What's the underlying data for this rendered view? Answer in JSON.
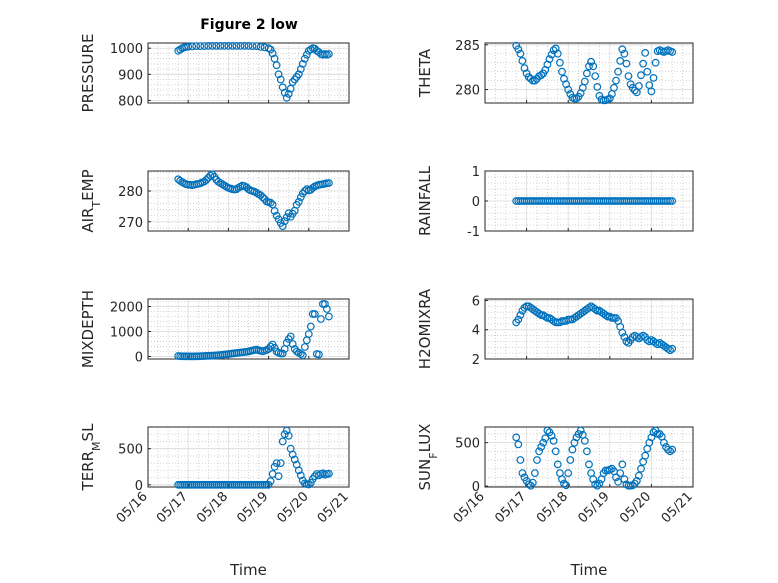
{
  "figure_title": "Figure 2 low",
  "colors": {
    "marker": "#0072BD",
    "axis": "#262626",
    "grid": "#c8c8c8"
  },
  "x_tick_labels": [
    "05/16",
    "05/17",
    "05/18",
    "05/19",
    "05/20",
    "05/21"
  ],
  "x_label": "Time",
  "chart_data": [
    {
      "type": "scatter",
      "id": "pressure",
      "title": "Figure 2 low",
      "ylabel": "PRESSURE",
      "ylim": [
        790,
        1020
      ],
      "yticks": [
        800,
        900,
        1000
      ],
      "xlim": [
        0,
        5
      ],
      "x": [
        0.75,
        0.8,
        0.85,
        0.9,
        0.95,
        1.0,
        1.1,
        1.2,
        1.3,
        1.4,
        1.5,
        1.6,
        1.7,
        1.8,
        1.9,
        2.0,
        2.1,
        2.2,
        2.3,
        2.4,
        2.5,
        2.6,
        2.7,
        2.8,
        2.9,
        3.0,
        3.05,
        3.1,
        3.15,
        3.2,
        3.25,
        3.3,
        3.35,
        3.4,
        3.45,
        3.5,
        3.55,
        3.6,
        3.65,
        3.7,
        3.75,
        3.8,
        3.85,
        3.9,
        3.95,
        4.0,
        4.05,
        4.1,
        4.15,
        4.2,
        4.25,
        4.3,
        4.35,
        4.4,
        4.45,
        4.5
      ],
      "y": [
        990,
        995,
        1000,
        1003,
        1005,
        1006,
        1007,
        1008,
        1008,
        1008,
        1009,
        1009,
        1009,
        1009,
        1009,
        1009,
        1009,
        1009,
        1009,
        1009,
        1009,
        1008,
        1008,
        1005,
        1003,
        1000,
        995,
        980,
        960,
        935,
        900,
        880,
        850,
        830,
        810,
        825,
        845,
        870,
        880,
        890,
        900,
        920,
        940,
        960,
        975,
        990,
        995,
        1000,
        998,
        990,
        985,
        978,
        975,
        978,
        975,
        978
      ]
    },
    {
      "type": "scatter",
      "id": "theta",
      "title": "",
      "ylabel": "THETA",
      "ylim": [
        278.5,
        285.2
      ],
      "yticks": [
        280,
        285
      ],
      "xlim": [
        0,
        5
      ],
      "x": [
        0.75,
        0.8,
        0.85,
        0.9,
        0.95,
        1.0,
        1.05,
        1.1,
        1.15,
        1.2,
        1.25,
        1.3,
        1.35,
        1.4,
        1.45,
        1.5,
        1.55,
        1.6,
        1.65,
        1.7,
        1.75,
        1.8,
        1.85,
        1.9,
        1.95,
        2.0,
        2.05,
        2.1,
        2.15,
        2.2,
        2.25,
        2.3,
        2.35,
        2.4,
        2.45,
        2.5,
        2.55,
        2.6,
        2.65,
        2.7,
        2.75,
        2.8,
        2.85,
        2.9,
        2.95,
        3.0,
        3.05,
        3.1,
        3.15,
        3.2,
        3.25,
        3.3,
        3.35,
        3.4,
        3.45,
        3.5,
        3.55,
        3.6,
        3.65,
        3.7,
        3.75,
        3.8,
        3.85,
        3.9,
        3.95,
        4.0,
        4.05,
        4.1,
        4.15,
        4.2,
        4.25,
        4.3,
        4.35,
        4.4,
        4.45,
        4.5
      ],
      "y": [
        284.9,
        284.5,
        284,
        283.2,
        282.4,
        281.8,
        281.4,
        281.2,
        281.0,
        281.0,
        281.2,
        281.5,
        281.6,
        281.8,
        282.2,
        282.8,
        283.4,
        283.9,
        284.4,
        284.6,
        284.0,
        283.0,
        282.0,
        281.2,
        280.6,
        280.0,
        279.5,
        279.1,
        279.0,
        279.0,
        279.2,
        279.6,
        280.2,
        280.9,
        281.8,
        282.6,
        283.1,
        282.6,
        281.5,
        280.3,
        279.3,
        278.9,
        278.8,
        278.8,
        278.9,
        279.0,
        279.5,
        280.2,
        281.0,
        282.0,
        283.2,
        284.5,
        284.0,
        282.9,
        281.5,
        280.6,
        280.2,
        279.9,
        279.7,
        280.4,
        281.6,
        282.9,
        284.1,
        282.0,
        280.5,
        279.8,
        281.3,
        283.0,
        284.3,
        284.4,
        284.3,
        284.2,
        284.3,
        284.4,
        284.3,
        284.2
      ]
    },
    {
      "type": "scatter",
      "id": "air_temp",
      "title": "",
      "ylabel": "AIR_TEMP",
      "ylim": [
        267,
        286.5
      ],
      "yticks": [
        270,
        280
      ],
      "xlim": [
        0,
        5
      ],
      "x": [
        0.75,
        0.8,
        0.85,
        0.9,
        0.95,
        1.0,
        1.05,
        1.1,
        1.15,
        1.2,
        1.25,
        1.3,
        1.35,
        1.4,
        1.45,
        1.5,
        1.55,
        1.6,
        1.65,
        1.7,
        1.75,
        1.8,
        1.85,
        1.9,
        1.95,
        2.0,
        2.05,
        2.1,
        2.15,
        2.2,
        2.25,
        2.3,
        2.35,
        2.4,
        2.45,
        2.5,
        2.55,
        2.6,
        2.65,
        2.7,
        2.75,
        2.8,
        2.85,
        2.9,
        2.95,
        3.0,
        3.05,
        3.1,
        3.15,
        3.2,
        3.25,
        3.3,
        3.35,
        3.4,
        3.45,
        3.5,
        3.55,
        3.6,
        3.65,
        3.7,
        3.75,
        3.8,
        3.85,
        3.9,
        3.95,
        4.0,
        4.05,
        4.1,
        4.15,
        4.2,
        4.25,
        4.3,
        4.35,
        4.4,
        4.45,
        4.5
      ],
      "y": [
        283.8,
        283.3,
        282.9,
        282.5,
        282.2,
        282.0,
        282.0,
        281.9,
        282.0,
        282.2,
        282.3,
        282.5,
        282.8,
        283.1,
        283.6,
        284.3,
        285.0,
        285.4,
        284.6,
        283.7,
        283.0,
        282.6,
        282.2,
        281.8,
        281.4,
        281.0,
        280.8,
        280.6,
        280.5,
        280.6,
        281.0,
        281.4,
        281.8,
        281.6,
        281.2,
        280.6,
        280.2,
        280.0,
        279.8,
        279.4,
        279.0,
        278.6,
        278.0,
        277.4,
        276.6,
        276.4,
        276.2,
        275.6,
        273.5,
        272.0,
        270.8,
        269.6,
        268.6,
        270.2,
        271.5,
        272.8,
        271.6,
        272.6,
        273.6,
        275.5,
        276.5,
        278.0,
        279.2,
        280.0,
        280.6,
        280.2,
        280.4,
        281.0,
        281.5,
        281.8,
        282.0,
        282.1,
        282.2,
        282.4,
        282.5,
        282.6
      ]
    },
    {
      "type": "scatter",
      "id": "rainfall",
      "title": "",
      "ylabel": "RAINFALL",
      "ylim": [
        -1,
        1
      ],
      "yticks": [
        -1,
        0,
        1
      ],
      "xlim": [
        0,
        5
      ],
      "x": [
        0.75,
        0.8,
        0.85,
        0.9,
        0.95,
        1.0,
        1.05,
        1.1,
        1.15,
        1.2,
        1.25,
        1.3,
        1.35,
        1.4,
        1.45,
        1.5,
        1.55,
        1.6,
        1.65,
        1.7,
        1.75,
        1.8,
        1.85,
        1.9,
        1.95,
        2.0,
        2.05,
        2.1,
        2.15,
        2.2,
        2.25,
        2.3,
        2.35,
        2.4,
        2.45,
        2.5,
        2.55,
        2.6,
        2.65,
        2.7,
        2.75,
        2.8,
        2.85,
        2.9,
        2.95,
        3.0,
        3.05,
        3.1,
        3.15,
        3.2,
        3.25,
        3.3,
        3.35,
        3.4,
        3.45,
        3.5,
        3.55,
        3.6,
        3.65,
        3.7,
        3.75,
        3.8,
        3.85,
        3.9,
        3.95,
        4.0,
        4.05,
        4.1,
        4.15,
        4.2,
        4.25,
        4.3,
        4.35,
        4.4,
        4.45,
        4.5
      ],
      "y": [
        0,
        0,
        0,
        0,
        0,
        0,
        0,
        0,
        0,
        0,
        0,
        0,
        0,
        0,
        0,
        0,
        0,
        0,
        0,
        0,
        0,
        0,
        0,
        0,
        0,
        0,
        0,
        0,
        0,
        0,
        0,
        0,
        0,
        0,
        0,
        0,
        0,
        0,
        0,
        0,
        0,
        0,
        0,
        0,
        0,
        0,
        0,
        0,
        0,
        0,
        0,
        0,
        0,
        0,
        0,
        0,
        0,
        0,
        0,
        0,
        0,
        0,
        0,
        0,
        0,
        0,
        0,
        0,
        0,
        0,
        0,
        0,
        0,
        0,
        0,
        0
      ]
    },
    {
      "type": "scatter",
      "id": "mixdepth",
      "title": "",
      "ylabel": "MIXDEPTH",
      "ylim": [
        -100,
        2300
      ],
      "yticks": [
        0,
        1000,
        2000
      ],
      "xlim": [
        0,
        5
      ],
      "x": [
        0.75,
        0.8,
        0.85,
        0.9,
        0.95,
        1.0,
        1.05,
        1.1,
        1.15,
        1.2,
        1.25,
        1.3,
        1.35,
        1.4,
        1.45,
        1.5,
        1.55,
        1.6,
        1.65,
        1.7,
        1.75,
        1.8,
        1.85,
        1.9,
        1.95,
        2.0,
        2.05,
        2.1,
        2.15,
        2.2,
        2.25,
        2.3,
        2.35,
        2.4,
        2.45,
        2.5,
        2.55,
        2.6,
        2.65,
        2.7,
        2.75,
        2.8,
        2.85,
        2.9,
        2.95,
        3.0,
        3.05,
        3.1,
        3.15,
        3.2,
        3.25,
        3.3,
        3.35,
        3.4,
        3.45,
        3.5,
        3.55,
        3.6,
        3.65,
        3.7,
        3.75,
        3.8,
        3.85,
        3.9,
        3.95,
        4.0,
        4.05,
        4.1,
        4.15,
        4.2,
        4.25,
        4.3,
        4.35,
        4.4,
        4.45,
        4.5
      ],
      "y": [
        20,
        15,
        10,
        10,
        10,
        5,
        5,
        5,
        5,
        10,
        10,
        15,
        15,
        20,
        25,
        30,
        30,
        35,
        40,
        45,
        50,
        60,
        70,
        80,
        90,
        100,
        110,
        120,
        130,
        140,
        150,
        160,
        170,
        180,
        190,
        200,
        220,
        240,
        260,
        280,
        250,
        230,
        210,
        230,
        260,
        300,
        400,
        480,
        350,
        200,
        150,
        120,
        120,
        300,
        550,
        700,
        800,
        500,
        300,
        200,
        150,
        100,
        50,
        380,
        650,
        900,
        1200,
        1700,
        1700,
        100,
        80,
        1500,
        2100,
        2100,
        1900,
        1600
      ]
    },
    {
      "type": "scatter",
      "id": "h2omixra",
      "title": "",
      "ylabel": "H2OMIXRA",
      "ylim": [
        2,
        6.1
      ],
      "yticks": [
        2,
        4,
        6
      ],
      "xlim": [
        0,
        5
      ],
      "x": [
        0.75,
        0.8,
        0.85,
        0.9,
        0.95,
        1.0,
        1.05,
        1.1,
        1.15,
        1.2,
        1.25,
        1.3,
        1.35,
        1.4,
        1.45,
        1.5,
        1.55,
        1.6,
        1.65,
        1.7,
        1.75,
        1.8,
        1.85,
        1.9,
        1.95,
        2.0,
        2.05,
        2.1,
        2.15,
        2.2,
        2.25,
        2.3,
        2.35,
        2.4,
        2.45,
        2.5,
        2.55,
        2.6,
        2.65,
        2.7,
        2.75,
        2.8,
        2.85,
        2.9,
        2.95,
        3.0,
        3.05,
        3.1,
        3.15,
        3.2,
        3.25,
        3.3,
        3.35,
        3.4,
        3.45,
        3.5,
        3.55,
        3.6,
        3.65,
        3.7,
        3.75,
        3.8,
        3.85,
        3.9,
        3.95,
        4.0,
        4.05,
        4.1,
        4.15,
        4.2,
        4.25,
        4.3,
        4.35,
        4.4,
        4.45,
        4.5
      ],
      "y": [
        4.5,
        4.7,
        5.0,
        5.3,
        5.5,
        5.6,
        5.6,
        5.5,
        5.4,
        5.3,
        5.2,
        5.1,
        5.0,
        5.0,
        4.9,
        4.8,
        4.8,
        4.7,
        4.6,
        4.5,
        4.5,
        4.5,
        4.6,
        4.6,
        4.6,
        4.7,
        4.7,
        4.7,
        4.8,
        4.9,
        5.0,
        5.1,
        5.2,
        5.3,
        5.4,
        5.5,
        5.6,
        5.5,
        5.4,
        5.3,
        5.3,
        5.2,
        5.1,
        5.0,
        4.9,
        4.9,
        4.8,
        4.8,
        4.8,
        4.6,
        4.2,
        3.8,
        3.5,
        3.2,
        3.1,
        3.3,
        3.5,
        3.6,
        3.5,
        3.4,
        3.5,
        3.6,
        3.5,
        3.3,
        3.2,
        3.3,
        3.2,
        3.1,
        3.0,
        3.1,
        3.0,
        2.9,
        2.8,
        2.7,
        2.6,
        2.7
      ]
    },
    {
      "type": "scatter",
      "id": "terr_msl",
      "title": "",
      "ylabel": "TERR_MSL",
      "ylim": [
        -30,
        800
      ],
      "yticks": [
        0,
        500
      ],
      "xlim": [
        0,
        5
      ],
      "x": [
        0.75,
        0.8,
        0.85,
        0.9,
        0.95,
        1.0,
        1.05,
        1.1,
        1.15,
        1.2,
        1.25,
        1.3,
        1.35,
        1.4,
        1.45,
        1.5,
        1.55,
        1.6,
        1.65,
        1.7,
        1.75,
        1.8,
        1.85,
        1.9,
        1.95,
        2.0,
        2.05,
        2.1,
        2.15,
        2.2,
        2.25,
        2.3,
        2.35,
        2.4,
        2.45,
        2.5,
        2.55,
        2.6,
        2.65,
        2.7,
        2.75,
        2.8,
        2.85,
        2.9,
        2.95,
        3.0,
        3.05,
        3.1,
        3.15,
        3.2,
        3.25,
        3.3,
        3.35,
        3.4,
        3.45,
        3.5,
        3.55,
        3.6,
        3.65,
        3.7,
        3.75,
        3.8,
        3.85,
        3.9,
        3.95,
        4.0,
        4.05,
        4.1,
        4.15,
        4.2,
        4.25,
        4.3,
        4.35,
        4.4,
        4.45,
        4.5
      ],
      "y": [
        0,
        0,
        0,
        0,
        0,
        0,
        0,
        0,
        0,
        0,
        0,
        0,
        0,
        0,
        0,
        0,
        0,
        0,
        0,
        0,
        0,
        0,
        0,
        0,
        0,
        0,
        0,
        0,
        0,
        0,
        0,
        0,
        0,
        0,
        0,
        0,
        0,
        0,
        0,
        0,
        0,
        0,
        0,
        0,
        0,
        0,
        50,
        150,
        250,
        300,
        120,
        300,
        600,
        700,
        750,
        680,
        500,
        420,
        350,
        280,
        200,
        130,
        60,
        20,
        10,
        5,
        30,
        80,
        120,
        150,
        130,
        150,
        160,
        140,
        150,
        155
      ]
    },
    {
      "type": "scatter",
      "id": "sun_flux",
      "title": "",
      "ylabel": "SUN_FLUX",
      "ylim": [
        -10,
        680
      ],
      "yticks": [
        0,
        500
      ],
      "xlim": [
        0,
        5
      ],
      "x": [
        0.75,
        0.8,
        0.85,
        0.9,
        0.95,
        1.0,
        1.05,
        1.1,
        1.15,
        1.2,
        1.25,
        1.3,
        1.35,
        1.4,
        1.45,
        1.5,
        1.55,
        1.6,
        1.65,
        1.7,
        1.75,
        1.8,
        1.85,
        1.9,
        1.95,
        2.0,
        2.05,
        2.1,
        2.15,
        2.2,
        2.25,
        2.3,
        2.35,
        2.4,
        2.45,
        2.5,
        2.55,
        2.6,
        2.65,
        2.7,
        2.75,
        2.8,
        2.85,
        2.9,
        2.95,
        3.0,
        3.05,
        3.1,
        3.15,
        3.2,
        3.25,
        3.3,
        3.35,
        3.4,
        3.45,
        3.5,
        3.55,
        3.6,
        3.65,
        3.7,
        3.75,
        3.8,
        3.85,
        3.9,
        3.95,
        4.0,
        4.05,
        4.1,
        4.15,
        4.2,
        4.25,
        4.3,
        4.35,
        4.4,
        4.45,
        4.5
      ],
      "y": [
        560,
        480,
        300,
        150,
        100,
        60,
        20,
        5,
        40,
        150,
        300,
        400,
        450,
        500,
        550,
        640,
        620,
        580,
        520,
        400,
        250,
        150,
        80,
        30,
        10,
        150,
        300,
        420,
        500,
        560,
        600,
        640,
        590,
        520,
        400,
        250,
        150,
        80,
        20,
        5,
        30,
        80,
        150,
        180,
        180,
        190,
        200,
        170,
        100,
        50,
        150,
        250,
        80,
        20,
        5,
        5,
        10,
        30,
        60,
        120,
        200,
        280,
        350,
        430,
        500,
        560,
        620,
        640,
        600,
        600,
        570,
        500,
        450,
        420,
        400,
        420
      ]
    }
  ]
}
